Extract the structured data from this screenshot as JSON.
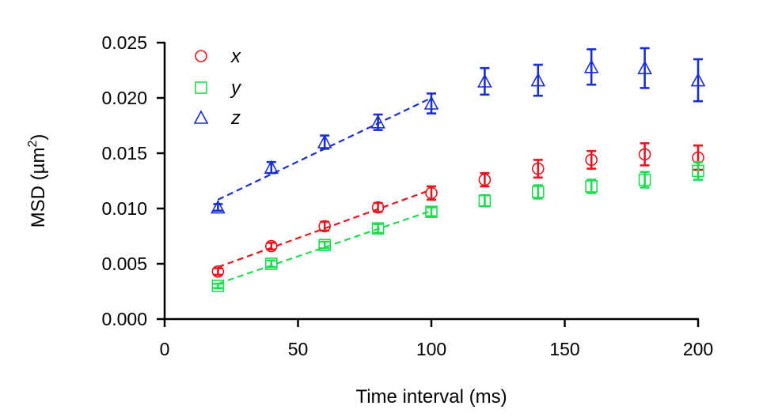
{
  "chart_data": {
    "type": "scatter",
    "xlabel": "Time interval (ms)",
    "ylabel": {
      "main": "MSD (µm",
      "sup": "2",
      "close": ")"
    },
    "xlim": [
      0,
      200
    ],
    "ylim": [
      0,
      0.025
    ],
    "xticks": [
      0,
      50,
      100,
      150,
      200
    ],
    "xtick_labels": [
      "0",
      "50",
      "100",
      "150",
      "200"
    ],
    "yticks": [
      0,
      0.005,
      0.01,
      0.015,
      0.02,
      0.025
    ],
    "ytick_labels": [
      "0.000",
      "0.005",
      "0.010",
      "0.015",
      "0.020",
      "0.025"
    ],
    "legend_position": "top-left",
    "series": [
      {
        "name": "x",
        "color": "#e8141e",
        "marker": "circle",
        "x": [
          20,
          40,
          60,
          80,
          100,
          120,
          140,
          160,
          180,
          200
        ],
        "y": [
          0.0043,
          0.0066,
          0.0084,
          0.0101,
          0.0114,
          0.0126,
          0.0136,
          0.0144,
          0.0149,
          0.0146
        ],
        "err": [
          0.0003,
          0.0003,
          0.0004,
          0.0004,
          0.0006,
          0.0006,
          0.0008,
          0.0008,
          0.001,
          0.0011
        ],
        "fit": {
          "x": [
            20,
            100
          ],
          "y": [
            0.0047,
            0.0117
          ]
        }
      },
      {
        "name": "y",
        "color": "#1edc50",
        "marker": "square",
        "x": [
          20,
          40,
          60,
          80,
          100,
          120,
          140,
          160,
          180,
          200
        ],
        "y": [
          0.003,
          0.005,
          0.0067,
          0.0082,
          0.0097,
          0.0107,
          0.0115,
          0.012,
          0.0126,
          0.0134
        ],
        "err": [
          0.0002,
          0.0003,
          0.0003,
          0.0004,
          0.0004,
          0.0005,
          0.0006,
          0.0006,
          0.0007,
          0.0008
        ],
        "fit": {
          "x": [
            20,
            100
          ],
          "y": [
            0.0032,
            0.0098
          ]
        }
      },
      {
        "name": "z",
        "color": "#1a2ed4",
        "marker": "triangle",
        "x": [
          20,
          40,
          60,
          80,
          100,
          120,
          140,
          160,
          180,
          200
        ],
        "y": [
          0.0101,
          0.0137,
          0.016,
          0.0178,
          0.0195,
          0.0215,
          0.0216,
          0.0228,
          0.0227,
          0.0216
        ],
        "err": [
          0.0003,
          0.0005,
          0.0006,
          0.0007,
          0.0009,
          0.0012,
          0.0014,
          0.0016,
          0.0018,
          0.0019
        ],
        "fit": {
          "x": [
            20,
            100
          ],
          "y": [
            0.0108,
            0.02
          ]
        }
      }
    ]
  }
}
